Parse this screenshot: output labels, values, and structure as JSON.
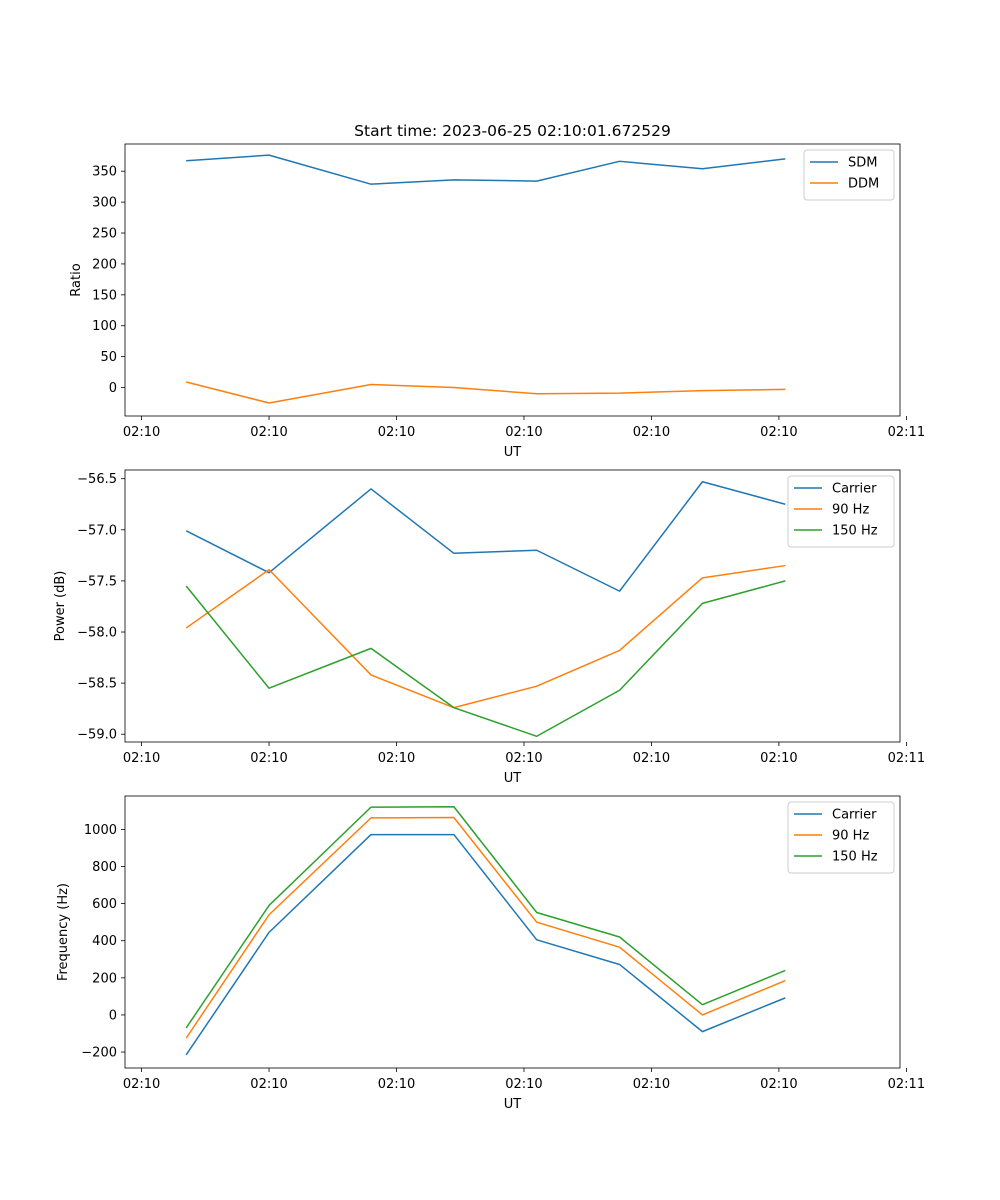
{
  "figure": {
    "title": "Start time: 2023-06-25 02:10:01.672529"
  },
  "colors": {
    "blue": "#1f77b4",
    "orange": "#ff7f0e",
    "green": "#2ca02c"
  },
  "chart_data": [
    {
      "type": "line",
      "title": "Start time: 2023-06-25 02:10:01.672529",
      "xlabel": "UT",
      "ylabel": "Ratio",
      "x_tick_labels": [
        "02:10",
        "02:10",
        "02:10",
        "02:10",
        "02:10",
        "02:10",
        "02:11"
      ],
      "xlim": [
        -0.13,
        5.95
      ],
      "x": [
        0.35,
        1.0,
        1.8,
        2.45,
        3.1,
        3.75,
        4.4,
        5.05
      ],
      "y_ticks": [
        0,
        50,
        100,
        150,
        200,
        250,
        300,
        350
      ],
      "ylim": [
        -46,
        394
      ],
      "grid": false,
      "legend": "top-right",
      "series": [
        {
          "name": "SDM",
          "color": "#1f77b4",
          "values": [
            367,
            376,
            329,
            336,
            334,
            366,
            354,
            370
          ]
        },
        {
          "name": "DDM",
          "color": "#ff7f0e",
          "values": [
            9,
            -25,
            5,
            0,
            -10,
            -9,
            -5,
            -3
          ]
        }
      ]
    },
    {
      "type": "line",
      "title": "",
      "xlabel": "UT",
      "ylabel": "Power (dB)",
      "x_tick_labels": [
        "02:10",
        "02:10",
        "02:10",
        "02:10",
        "02:10",
        "02:10",
        "02:11"
      ],
      "xlim": [
        -0.13,
        5.95
      ],
      "x": [
        0.35,
        1.0,
        1.8,
        2.45,
        3.1,
        3.75,
        4.4,
        5.05
      ],
      "y_ticks": [
        -59.0,
        -58.5,
        -58.0,
        -57.5,
        -57.0,
        -56.5
      ],
      "y_tick_labels": [
        "−59.0",
        "−58.5",
        "−58.0",
        "−57.5",
        "−57.0",
        "−56.5"
      ],
      "ylim": [
        -59.076,
        -56.415
      ],
      "grid": false,
      "legend": "top-right",
      "series": [
        {
          "name": "Carrier",
          "color": "#1f77b4",
          "values": [
            -57.01,
            -57.42,
            -56.6,
            -57.23,
            -57.2,
            -57.6,
            -56.53,
            -56.75
          ]
        },
        {
          "name": "90 Hz",
          "color": "#ff7f0e",
          "values": [
            -57.96,
            -57.39,
            -58.42,
            -58.74,
            -58.53,
            -58.18,
            -57.47,
            -57.35
          ]
        },
        {
          "name": "150 Hz",
          "color": "#2ca02c",
          "values": [
            -57.55,
            -58.55,
            -58.16,
            -58.74,
            -59.02,
            -58.57,
            -57.72,
            -57.5
          ]
        }
      ]
    },
    {
      "type": "line",
      "title": "",
      "xlabel": "UT",
      "ylabel": "Frequency (Hz)",
      "x_tick_labels": [
        "02:10",
        "02:10",
        "02:10",
        "02:10",
        "02:10",
        "02:10",
        "02:11"
      ],
      "xlim": [
        -0.13,
        5.95
      ],
      "x": [
        0.35,
        1.0,
        1.8,
        2.45,
        3.1,
        3.75,
        4.4,
        5.05
      ],
      "y_ticks": [
        -200,
        0,
        200,
        400,
        600,
        800,
        1000
      ],
      "y_tick_labels": [
        "−200",
        "0",
        "200",
        "400",
        "600",
        "800",
        "1000"
      ],
      "ylim": [
        -286,
        1180
      ],
      "grid": false,
      "legend": "top-right",
      "series": [
        {
          "name": "Carrier",
          "color": "#1f77b4",
          "values": [
            -215,
            445,
            972,
            972,
            405,
            272,
            -90,
            92
          ]
        },
        {
          "name": "90 Hz",
          "color": "#ff7f0e",
          "values": [
            -125,
            540,
            1062,
            1064,
            500,
            365,
            0,
            185
          ]
        },
        {
          "name": "150 Hz",
          "color": "#2ca02c",
          "values": [
            -70,
            590,
            1120,
            1122,
            552,
            420,
            55,
            240
          ]
        }
      ]
    }
  ]
}
